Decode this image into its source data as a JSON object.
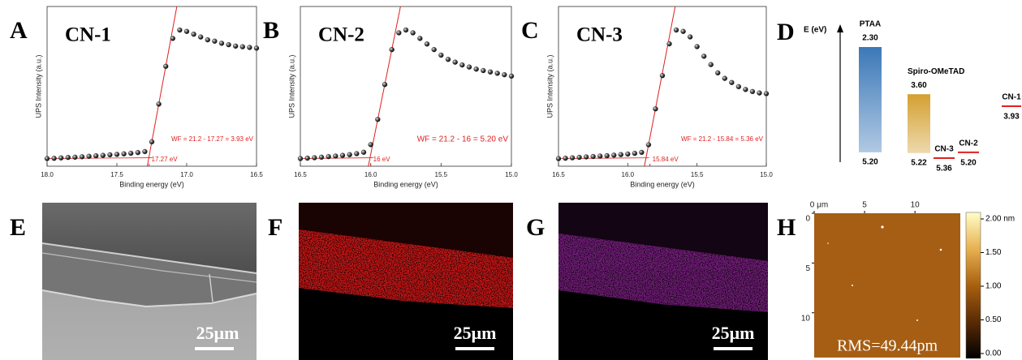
{
  "chart_data": [
    {
      "type": "line",
      "panel": "A",
      "title": "CN-1",
      "xlabel": "Binding energy (eV)",
      "ylabel": "UPS Intensity (a.u.)",
      "xlim": [
        18.0,
        16.5
      ],
      "xticks": [
        {
          "value": 18.0,
          "label": "18.0"
        },
        {
          "value": 17.5,
          "label": "17.5"
        },
        {
          "value": 17.0,
          "label": "17.0"
        },
        {
          "value": 16.5,
          "label": "16.5"
        }
      ],
      "x": [
        18.0,
        17.95,
        17.9,
        17.85,
        17.8,
        17.75,
        17.7,
        17.65,
        17.6,
        17.55,
        17.5,
        17.45,
        17.4,
        17.35,
        17.3,
        17.25,
        17.2,
        17.15,
        17.1,
        17.05,
        17.0,
        16.95,
        16.9,
        16.85,
        16.8,
        16.75,
        16.7,
        16.65,
        16.6,
        16.55,
        16.5
      ],
      "series": [
        {
          "color": "#1a1a1a",
          "values": [
            2,
            2.2,
            2.5,
            2.8,
            3,
            3.3,
            3.6,
            4,
            4.3,
            4.7,
            5,
            5.4,
            5.8,
            6.3,
            7,
            14,
            41,
            68,
            88,
            94,
            93,
            91,
            89,
            87,
            86,
            84.5,
            83.5,
            82.5,
            82,
            81.5,
            81
          ]
        }
      ],
      "fit_color": "#e02020",
      "cutoff": {
        "value": 17.27,
        "label": "17.27 eV"
      },
      "annotation": "WF = 21.2 - 17.27 = 3.93 eV"
    },
    {
      "type": "line",
      "panel": "B",
      "title": "CN-2",
      "xlabel": "Binding energy (eV)",
      "ylabel": "UPS Intensity (a.u.)",
      "xlim": [
        16.5,
        15.0
      ],
      "xticks": [
        {
          "value": 16.5,
          "label": "16.5"
        },
        {
          "value": 16.0,
          "label": "16.0"
        },
        {
          "value": 15.5,
          "label": "15.5"
        },
        {
          "value": 15.0,
          "label": "15.0"
        }
      ],
      "x": [
        16.5,
        16.45,
        16.4,
        16.35,
        16.3,
        16.25,
        16.2,
        16.15,
        16.1,
        16.05,
        16.0,
        15.95,
        15.9,
        15.85,
        15.8,
        15.75,
        15.7,
        15.65,
        15.6,
        15.55,
        15.5,
        15.45,
        15.4,
        15.35,
        15.3,
        15.25,
        15.2,
        15.15,
        15.1,
        15.05,
        15.0
      ],
      "series": [
        {
          "color": "#1a1a1a",
          "values": [
            2,
            2.3,
            2.6,
            3,
            3.4,
            3.8,
            4.3,
            4.8,
            5.5,
            6.5,
            12,
            30,
            55,
            80,
            92,
            94,
            92,
            88,
            84,
            80,
            76,
            73,
            71,
            69,
            67.5,
            66,
            65,
            64,
            63,
            62,
            61
          ]
        }
      ],
      "fit_color": "#e02020",
      "cutoff": {
        "value": 16,
        "label": "16 eV"
      },
      "annotation": "WF = 21.2 - 16 = 5.20 eV"
    },
    {
      "type": "line",
      "panel": "C",
      "title": "CN-3",
      "xlabel": "Binding energy (eV)",
      "ylabel": "UPS Intensity (a.u.)",
      "xlim": [
        16.5,
        15.0
      ],
      "xticks": [
        {
          "value": 16.5,
          "label": "16.5"
        },
        {
          "value": 16.0,
          "label": "16.0"
        },
        {
          "value": 15.5,
          "label": "15.5"
        },
        {
          "value": 15.0,
          "label": "15.0"
        }
      ],
      "x": [
        16.5,
        16.45,
        16.4,
        16.35,
        16.3,
        16.25,
        16.2,
        16.15,
        16.1,
        16.05,
        16.0,
        15.95,
        15.9,
        15.85,
        15.8,
        15.75,
        15.7,
        15.65,
        15.6,
        15.55,
        15.5,
        15.45,
        15.4,
        15.35,
        15.3,
        15.25,
        15.2,
        15.15,
        15.1,
        15.05,
        15.0
      ],
      "series": [
        {
          "color": "#1a1a1a",
          "values": [
            2,
            2.3,
            2.6,
            2.9,
            3.2,
            3.5,
            3.8,
            4.1,
            4.5,
            4.9,
            5.3,
            5.8,
            6.5,
            12,
            38,
            62,
            85,
            95,
            94,
            90,
            83,
            76,
            70,
            64,
            60,
            57,
            54,
            52,
            50.5,
            49.5,
            49
          ]
        }
      ],
      "fit_color": "#e02020",
      "cutoff": {
        "value": 15.84,
        "label": "15.84 eV"
      },
      "annotation": "WF = 21.2 - 15.84 = 5.36 eV"
    },
    {
      "type": "energy",
      "panel": "D",
      "ylabel": "E (eV)",
      "series": [
        {
          "name": "PTAA",
          "color": "#3b78b8",
          "values": [
            2.3,
            5.2
          ],
          "value_labels": [
            "2.30",
            "5.20"
          ]
        },
        {
          "name": "Spiro-OMeTAD",
          "color": "#d4a031",
          "values": [
            3.6,
            5.22
          ],
          "value_labels": [
            "3.60",
            "5.22"
          ]
        },
        {
          "name": "CN-3",
          "color": "#e02020",
          "values": [
            5.36
          ],
          "value_labels": [
            "5.36"
          ]
        },
        {
          "name": "CN-2",
          "color": "#e02020",
          "values": [
            5.2
          ],
          "value_labels": [
            "5.20"
          ]
        },
        {
          "name": "CN-1",
          "color": "#e02020",
          "values": [
            3.93
          ],
          "value_labels": [
            "3.93"
          ]
        }
      ]
    },
    {
      "type": "heatmap",
      "panel": "H",
      "xlim": [
        0,
        14.5
      ],
      "ylim": [
        0,
        14.5
      ],
      "xticks": [
        {
          "value": 0,
          "label": "0 μm"
        },
        5,
        10
      ],
      "yticks": [
        0,
        5,
        10
      ],
      "clim": [
        0,
        2
      ],
      "cticks": [
        {
          "value": 2,
          "label": "2.00 nm"
        },
        {
          "value": 1.5,
          "label": "1.50"
        },
        {
          "value": 1,
          "label": "1.00"
        },
        {
          "value": 0.5,
          "label": "0.50"
        },
        {
          "value": 0,
          "label": "0.00"
        }
      ],
      "colors": [
        "#000000",
        "#5a2a05",
        "#a8600f",
        "#e8b050",
        "#ffffc8"
      ],
      "annotation": "RMS=49.44pm"
    }
  ],
  "images": [
    {
      "panel": "E",
      "scale_bar": "25μm"
    },
    {
      "panel": "F",
      "scale_bar": "25μm",
      "color": "#d81818"
    },
    {
      "panel": "G",
      "scale_bar": "25μm",
      "color": "#a028a8"
    }
  ]
}
